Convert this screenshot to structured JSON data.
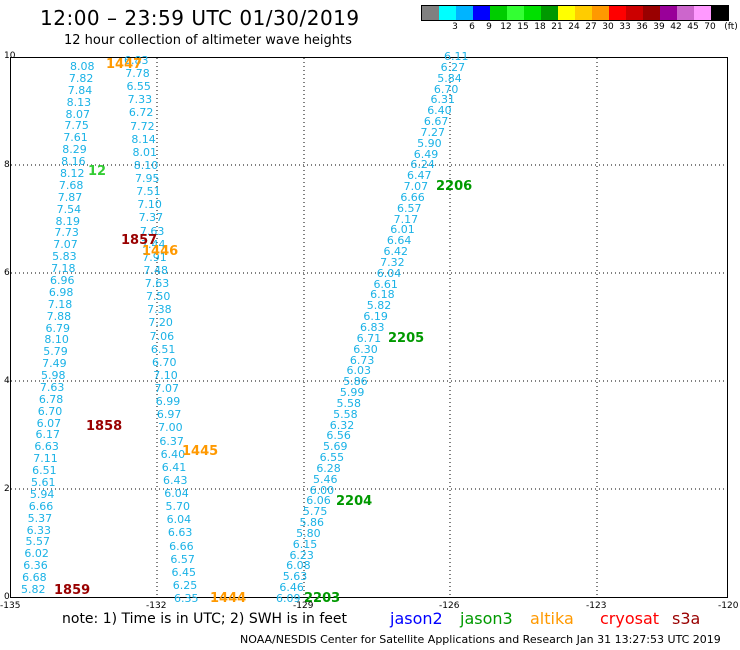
{
  "header": {
    "title": "12:00 – 23:59 UTC 01/30/2019",
    "subtitle": "12 hour collection of altimeter wave heights"
  },
  "color_scale": {
    "unit_label": "(ft)",
    "swatches": [
      {
        "color": "#808080",
        "label": ""
      },
      {
        "color": "#00ffff",
        "label": "3"
      },
      {
        "color": "#00b4ff",
        "label": "6"
      },
      {
        "color": "#0000ff",
        "label": "9"
      },
      {
        "color": "#00cc00",
        "label": "12"
      },
      {
        "color": "#33ff33",
        "label": "15"
      },
      {
        "color": "#00e000",
        "label": "18"
      },
      {
        "color": "#009900",
        "label": "21"
      },
      {
        "color": "#ffff00",
        "label": "24"
      },
      {
        "color": "#ffcc00",
        "label": "27"
      },
      {
        "color": "#ff9900",
        "label": "30"
      },
      {
        "color": "#ff0000",
        "label": "33"
      },
      {
        "color": "#cc0000",
        "label": "36"
      },
      {
        "color": "#990000",
        "label": "39"
      },
      {
        "color": "#990099",
        "label": "42"
      },
      {
        "color": "#cc66cc",
        "label": "45"
      },
      {
        "color": "#ff99ff",
        "label": "70"
      },
      {
        "color": "#000000",
        "label": ""
      }
    ]
  },
  "map": {
    "x_ticks": [
      "-135",
      "-132",
      "-129",
      "-126",
      "-123",
      "-120"
    ],
    "y_ticks": [
      "0",
      "2",
      "4",
      "6",
      "8",
      "10"
    ],
    "wave_color": "#1ab2e6",
    "tracks": [
      {
        "name": "track-a",
        "color": "#1ab2e6",
        "start": [
          4,
          28,
          113
        ],
        "step": [
          0,
          -10.5
        ],
        "values": [
          "5.82",
          "6.68",
          "6.36",
          "6.02",
          "5.57",
          "6.33",
          "5.37",
          "6.66",
          "5.94",
          "5.61",
          "6.51",
          "7.11",
          "6.63",
          "6.17",
          "6.07",
          "6.70",
          "6.78",
          "7.63",
          "5.98",
          "7.49",
          "5.79",
          "8.10",
          "6.79",
          "7.88",
          "7.18",
          "6.98",
          "6.96",
          "7.18",
          "5.83",
          "7.07",
          "7.73",
          "8.19",
          "7.54",
          "7.87",
          "7.68",
          "8.12",
          "8.16",
          "8.29",
          "7.61",
          "7.75",
          "8.07",
          "8.13",
          "7.84",
          "7.82",
          "8.08"
        ]
      },
      {
        "name": "track-b",
        "color": "#1ab2e6",
        "start": [
          -4,
          173,
          113
        ],
        "step": [
          0,
          -10.6
        ],
        "values": [
          "6.35",
          "6.25",
          "6.45",
          "6.57",
          "6.66",
          "6.63",
          "6.04",
          "5.70",
          "6.04",
          "6.43",
          "6.41",
          "6.40",
          "6.37",
          "7.00",
          "6.97",
          "6.99",
          "7.07",
          "7.10",
          "6.70",
          "6.51",
          "7.06",
          "7.20",
          "7.38",
          "7.50",
          "7.63",
          "7.48",
          "7.91",
          "7.44",
          "7.63",
          "7.37",
          "7.10",
          "7.51",
          "7.95",
          "8.10",
          "8.01",
          "8.14",
          "7.72",
          "6.72",
          "7.33",
          "6.55",
          "7.78",
          "6.83"
        ]
      },
      {
        "name": "track-c",
        "color": "#1ab2e6",
        "start": [
          586,
          269,
          443
        ],
        "step": [
          0,
          -10.6
        ],
        "values": [
          "6.09",
          "6.46",
          "5.63",
          "6.08",
          "6.23",
          "6.15",
          "5.80",
          "5.86",
          "5.75",
          "6.06",
          "6.00",
          "5.46",
          "6.28",
          "6.55",
          "5.69",
          "6.56",
          "6.32",
          "5.58",
          "5.58",
          "5.99",
          "5.86",
          "6.03",
          "6.73",
          "6.30",
          "6.71",
          "6.83",
          "6.19",
          "5.82",
          "6.18",
          "6.61",
          "6.04",
          "7.32",
          "6.42",
          "6.64",
          "6.01",
          "7.17",
          "6.57",
          "6.66",
          "7.07",
          "6.47",
          "6.24",
          "6.49",
          "5.90",
          "7.27",
          "6.67",
          "6.40",
          "6.31",
          "6.70",
          "5.84",
          "6.27",
          "6.11"
        ]
      }
    ],
    "pass_labels": [
      {
        "text": "1859",
        "color": "#990000"
      },
      {
        "text": "1858",
        "color": "#990000"
      },
      {
        "text": "1857",
        "color": "#990000"
      },
      {
        "text": "1444",
        "color": "#ff9900"
      },
      {
        "text": "1445",
        "color": "#ff9900"
      },
      {
        "text": "1446",
        "color": "#ff9900"
      },
      {
        "text": "1447",
        "color": "#ff9900"
      },
      {
        "text": "2203",
        "color": "#009900"
      },
      {
        "text": "2204",
        "color": "#009900"
      },
      {
        "text": "2205",
        "color": "#009900"
      },
      {
        "text": "2206",
        "color": "#009900"
      },
      {
        "text": "12",
        "color": "#33cc33"
      }
    ]
  },
  "footer": {
    "note": "note: 1) Time is in UTC; 2) SWH is in feet",
    "satellites": [
      {
        "name": "jason2",
        "color": "#0000ff"
      },
      {
        "name": "jason3",
        "color": "#009900"
      },
      {
        "name": "altika",
        "color": "#ff9900"
      },
      {
        "name": "cryosat",
        "color": "#ff0000"
      },
      {
        "name": "s3a",
        "color": "#990000"
      }
    ],
    "credit": "NOAA/NESDIS Center for Satellite Applications and Research    Jan 31 13:27:53 UTC 2019"
  }
}
